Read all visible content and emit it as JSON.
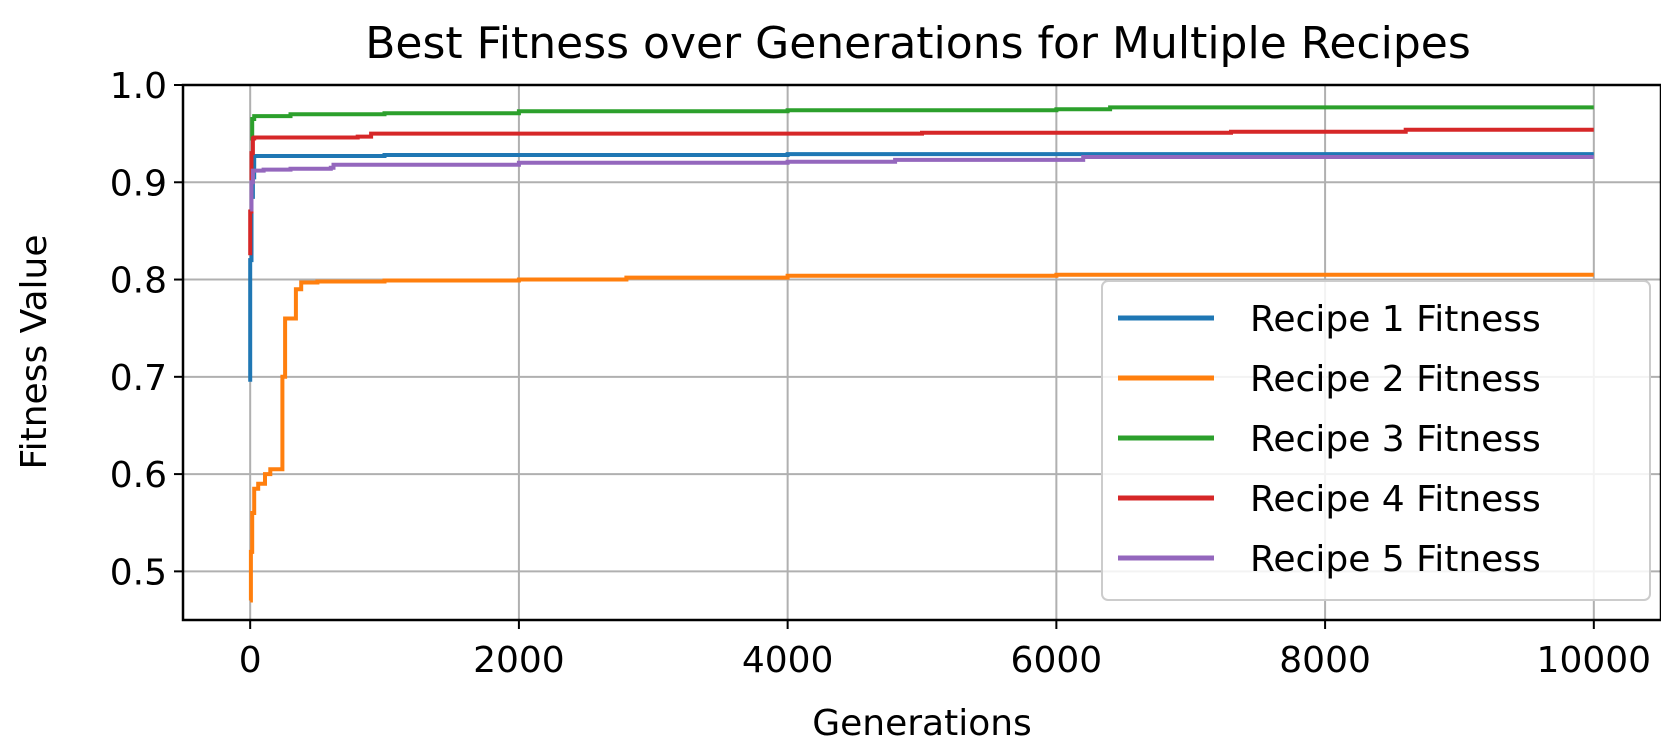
{
  "chart_data": {
    "type": "line",
    "title": "Best Fitness over Generations for Multiple Recipes",
    "xlabel": "Generations",
    "ylabel": "Fitness Value",
    "xlim": [
      -500,
      10500
    ],
    "ylim": [
      0.45,
      1.0
    ],
    "xticks": [
      0,
      2000,
      4000,
      6000,
      8000,
      10000
    ],
    "yticks": [
      0.5,
      0.6,
      0.7,
      0.8,
      0.9,
      1.0
    ],
    "xtick_labels": [
      "0",
      "2000",
      "4000",
      "6000",
      "8000",
      "10000"
    ],
    "ytick_labels": [
      "0.5",
      "0.6",
      "0.7",
      "0.8",
      "0.9",
      "1.0"
    ],
    "grid": true,
    "legend_position": "lower-right",
    "series": [
      {
        "name": "Recipe 1 Fitness",
        "color": "#1f77b4",
        "points": [
          [
            0,
            0.695
          ],
          [
            0,
            0.82
          ],
          [
            10,
            0.885
          ],
          [
            20,
            0.905
          ],
          [
            30,
            0.927
          ],
          [
            1000,
            0.928
          ],
          [
            4000,
            0.929
          ],
          [
            10000,
            0.929
          ]
        ]
      },
      {
        "name": "Recipe 2 Fitness",
        "color": "#ff7f0e",
        "points": [
          [
            0,
            0.47
          ],
          [
            5,
            0.52
          ],
          [
            15,
            0.56
          ],
          [
            30,
            0.585
          ],
          [
            60,
            0.59
          ],
          [
            100,
            0.59
          ],
          [
            110,
            0.6
          ],
          [
            150,
            0.605
          ],
          [
            230,
            0.605
          ],
          [
            240,
            0.7
          ],
          [
            260,
            0.76
          ],
          [
            320,
            0.76
          ],
          [
            340,
            0.79
          ],
          [
            380,
            0.797
          ],
          [
            500,
            0.798
          ],
          [
            1000,
            0.799
          ],
          [
            2000,
            0.8
          ],
          [
            2800,
            0.802
          ],
          [
            4000,
            0.804
          ],
          [
            6000,
            0.805
          ],
          [
            10000,
            0.805
          ]
        ]
      },
      {
        "name": "Recipe 3 Fitness",
        "color": "#2ca02c",
        "points": [
          [
            0,
            0.945
          ],
          [
            15,
            0.965
          ],
          [
            30,
            0.968
          ],
          [
            300,
            0.97
          ],
          [
            1000,
            0.971
          ],
          [
            2000,
            0.973
          ],
          [
            4000,
            0.974
          ],
          [
            6000,
            0.975
          ],
          [
            6400,
            0.977
          ],
          [
            10000,
            0.977
          ]
        ]
      },
      {
        "name": "Recipe 4 Fitness",
        "color": "#d62728",
        "points": [
          [
            0,
            0.825
          ],
          [
            0,
            0.87
          ],
          [
            10,
            0.93
          ],
          [
            20,
            0.945
          ],
          [
            30,
            0.946
          ],
          [
            800,
            0.947
          ],
          [
            900,
            0.95
          ],
          [
            5000,
            0.951
          ],
          [
            7300,
            0.952
          ],
          [
            8600,
            0.954
          ],
          [
            10000,
            0.954
          ]
        ]
      },
      {
        "name": "Recipe 5 Fitness",
        "color": "#9467bd",
        "points": [
          [
            0,
            0.872
          ],
          [
            10,
            0.9
          ],
          [
            20,
            0.912
          ],
          [
            100,
            0.913
          ],
          [
            300,
            0.914
          ],
          [
            600,
            0.915
          ],
          [
            620,
            0.918
          ],
          [
            2000,
            0.92
          ],
          [
            4000,
            0.921
          ],
          [
            4800,
            0.923
          ],
          [
            6000,
            0.923
          ],
          [
            6200,
            0.926
          ],
          [
            10000,
            0.926
          ]
        ]
      }
    ]
  }
}
